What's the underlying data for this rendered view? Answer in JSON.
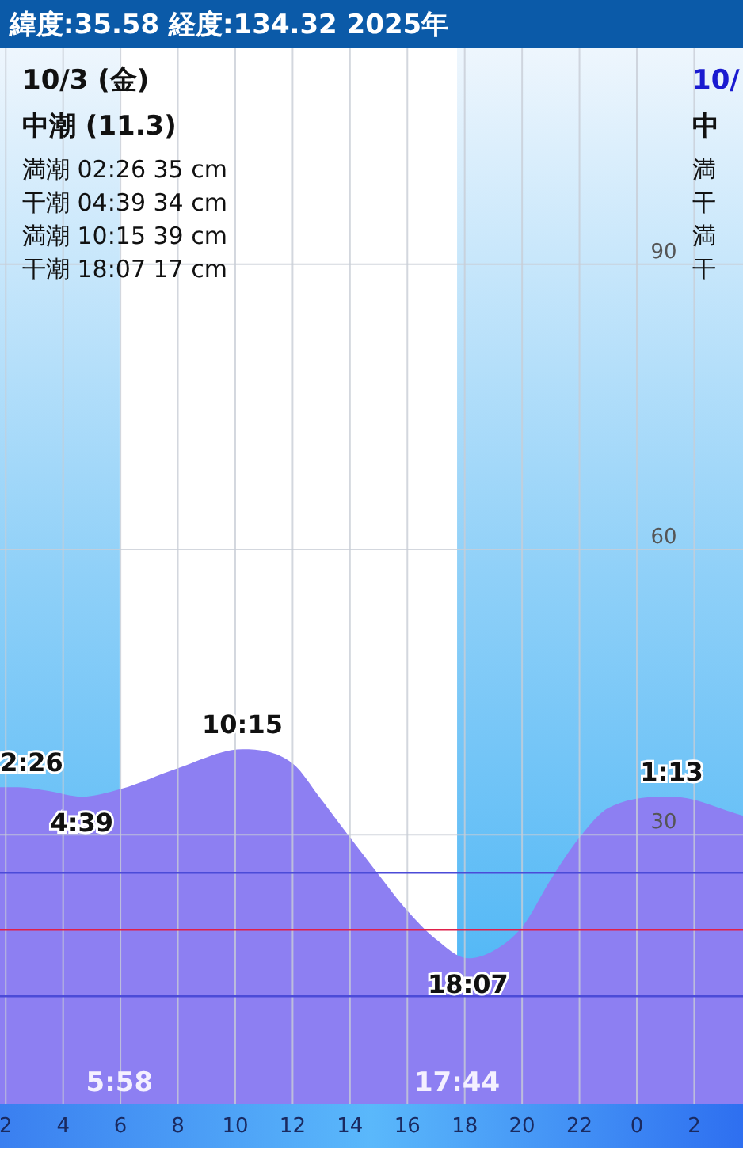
{
  "chart_data": {
    "type": "area",
    "title": "緯度:35.58 経度:134.32  2025年",
    "annotations": [
      "10/3 (金)",
      "中潮 (11.3)",
      "満潮 02:26  35 cm",
      "干潮 04:39  34 cm",
      "満潮 10:15  39 cm",
      "干潮 18:07  17 cm",
      "10/",
      "中",
      "満",
      "干",
      "満",
      "干",
      {
        "text": "2:26",
        "x": "2025-10-03T02:26",
        "y": 35
      },
      {
        "text": "4:39",
        "x": "2025-10-03T04:39",
        "y": 34
      },
      {
        "text": "10:15",
        "x": "2025-10-03T10:15",
        "y": 39
      },
      {
        "text": "18:07",
        "x": "2025-10-03T18:07",
        "y": 17
      },
      {
        "text": "1:13",
        "x": "2025-10-04T01:13",
        "y": 34
      },
      {
        "text": "5:58",
        "x": "2025-10-03T05:58",
        "y": 3
      },
      {
        "text": "17:44",
        "x": "2025-10-03T17:44",
        "y": 3
      }
    ],
    "x": [
      "2025-10-03T01:48",
      "2025-10-03T02:26",
      "2025-10-03T03:30",
      "2025-10-03T04:39",
      "2025-10-03T06:00",
      "2025-10-03T08:00",
      "2025-10-03T10:15",
      "2025-10-03T12:00",
      "2025-10-03T13:00",
      "2025-10-03T14:00",
      "2025-10-03T15:00",
      "2025-10-03T16:00",
      "2025-10-03T17:00",
      "2025-10-03T18:07",
      "2025-10-03T19:00",
      "2025-10-03T20:00",
      "2025-10-03T21:00",
      "2025-10-03T22:00",
      "2025-10-03T23:00",
      "2025-10-04T01:13",
      "2025-10-04T03:42"
    ],
    "values": [
      35,
      35,
      34.6,
      34,
      34.8,
      37,
      39,
      37.5,
      33.7,
      29.7,
      25.8,
      22,
      19,
      17,
      17.8,
      20.3,
      25.3,
      29.7,
      32.8,
      34,
      32
    ],
    "color": "#8d7ff2",
    "xlim": [
      "2025-10-03T01:48",
      "2025-10-04T03:42"
    ],
    "ylim": [
      1.7,
      112.8
    ],
    "xticks": [
      {
        "value": "2025-10-03T02:00",
        "label": "2"
      },
      {
        "value": "2025-10-03T04:00",
        "label": "4"
      },
      {
        "value": "2025-10-03T06:00",
        "label": "6"
      },
      {
        "value": "2025-10-03T08:00",
        "label": "8"
      },
      {
        "value": "2025-10-03T10:00",
        "label": "10"
      },
      {
        "value": "2025-10-03T12:00",
        "label": "12"
      },
      {
        "value": "2025-10-03T14:00",
        "label": "14"
      },
      {
        "value": "2025-10-03T16:00",
        "label": "16"
      },
      {
        "value": "2025-10-03T18:00",
        "label": "18"
      },
      {
        "value": "2025-10-03T20:00",
        "label": "20"
      },
      {
        "value": "2025-10-03T22:00",
        "label": "22"
      },
      {
        "value": "2025-10-04T00:00",
        "label": "0"
      },
      {
        "value": "2025-10-04T02:00",
        "label": "2"
      }
    ],
    "yticks": [
      30,
      60,
      90
    ],
    "grid": true,
    "bands": [
      {
        "axis": "x",
        "from": "2025-10-03T05:58",
        "to": "2025-10-03T17:44",
        "color": "#ffffff"
      }
    ],
    "ref_lines": [
      {
        "axis": "y",
        "value": 26,
        "color": "#4b4bd8"
      },
      {
        "axis": "y",
        "value": 20,
        "color": "#e0204a"
      },
      {
        "axis": "y",
        "value": 13,
        "color": "#4b4bd8"
      }
    ]
  }
}
